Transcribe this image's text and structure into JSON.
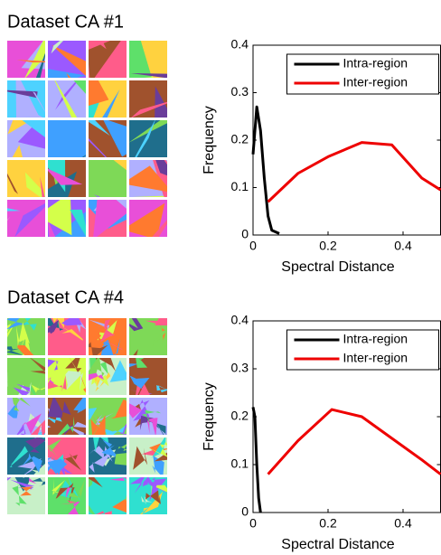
{
  "chart_data": [
    {
      "type": "line",
      "title": "Dataset CA #1",
      "xlabel": "Spectral Distance",
      "ylabel": "Frequency",
      "xlim": [
        0,
        0.5
      ],
      "ylim": [
        0,
        0.4
      ],
      "xticks": [
        0,
        0.2,
        0.4
      ],
      "yticks": [
        0,
        0.1,
        0.2,
        0.3,
        0.4
      ],
      "grid": false,
      "legend": "upper right",
      "series": [
        {
          "name": "Intra-region",
          "color": "#000000",
          "x": [
            0,
            0.01,
            0.02,
            0.03,
            0.04,
            0.05,
            0.07
          ],
          "values": [
            0.17,
            0.27,
            0.22,
            0.12,
            0.04,
            0.01,
            0.003
          ]
        },
        {
          "name": "Inter-region",
          "color": "#ee0000",
          "x": [
            0.04,
            0.12,
            0.2,
            0.29,
            0.37,
            0.45,
            0.5
          ],
          "values": [
            0.07,
            0.13,
            0.165,
            0.195,
            0.19,
            0.12,
            0.095
          ]
        }
      ]
    },
    {
      "type": "line",
      "title": "Dataset CA #4",
      "xlabel": "Spectral Distance",
      "ylabel": "Frequency",
      "xlim": [
        0,
        0.5
      ],
      "ylim": [
        0,
        0.4
      ],
      "xticks": [
        0,
        0.2,
        0.4
      ],
      "yticks": [
        0,
        0.1,
        0.2,
        0.3,
        0.4
      ],
      "grid": false,
      "legend": "upper right",
      "series": [
        {
          "name": "Intra-region",
          "color": "#000000",
          "x": [
            0,
            0.005,
            0.01,
            0.015,
            0.02
          ],
          "values": [
            0.22,
            0.2,
            0.1,
            0.03,
            0.0
          ]
        },
        {
          "name": "Inter-region",
          "color": "#ee0000",
          "x": [
            0.04,
            0.12,
            0.21,
            0.29,
            0.37,
            0.45,
            0.5
          ],
          "values": [
            0.08,
            0.15,
            0.215,
            0.2,
            0.155,
            0.11,
            0.08
          ]
        }
      ]
    }
  ]
}
